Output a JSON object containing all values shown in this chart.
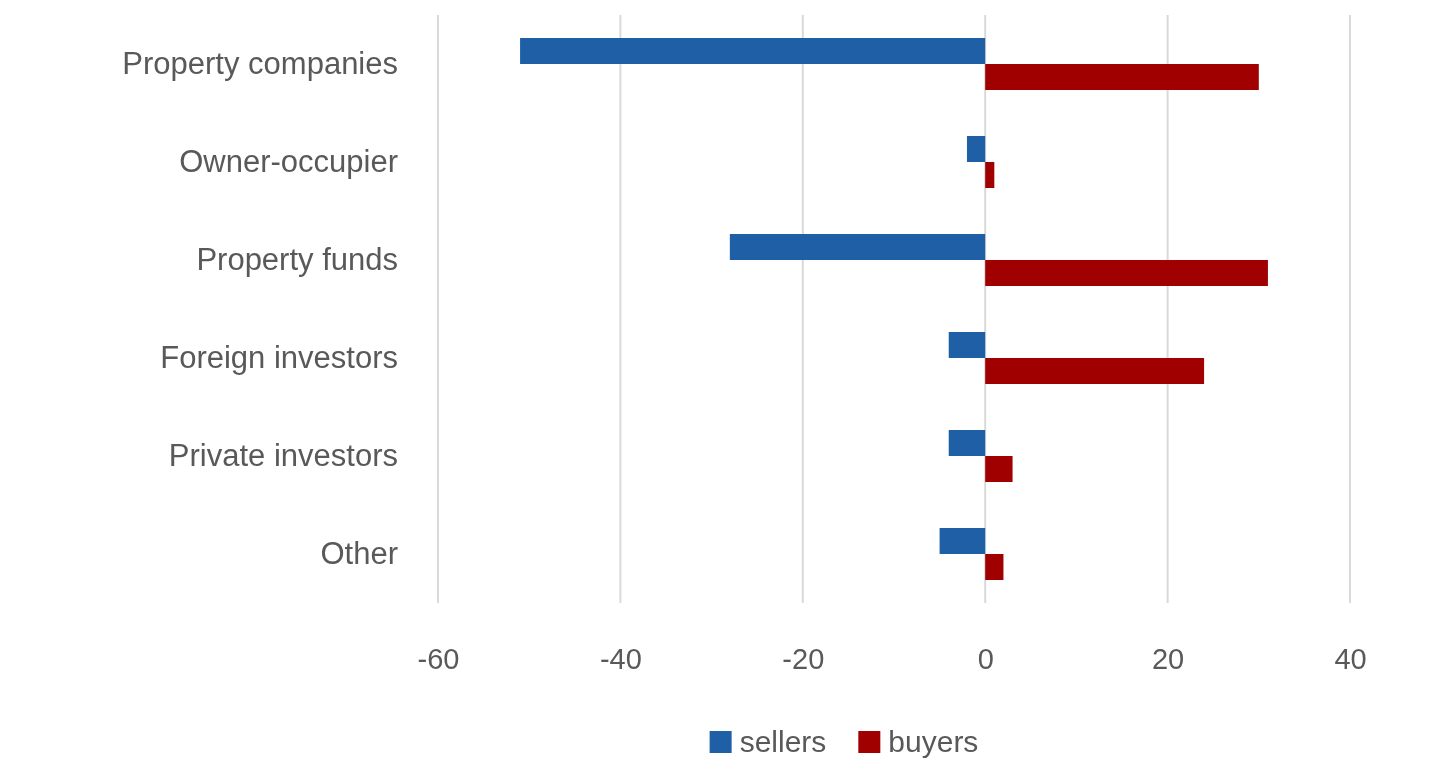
{
  "chart_data": {
    "type": "bar",
    "orientation": "horizontal",
    "categories": [
      "Property companies",
      "Owner-occupier",
      "Property funds",
      "Foreign investors",
      "Private investors",
      "Other"
    ],
    "series": [
      {
        "name": "sellers",
        "color": "#1f5fa6",
        "values": [
          -51,
          -2,
          -28,
          -4,
          -4,
          -5
        ]
      },
      {
        "name": "buyers",
        "color": "#a00000",
        "values": [
          30,
          1,
          31,
          24,
          3,
          2
        ]
      }
    ],
    "xlim": [
      -60,
      40
    ],
    "xticks": [
      -60,
      -40,
      -20,
      0,
      20,
      40
    ],
    "grid": "x",
    "legend": "bottom"
  }
}
